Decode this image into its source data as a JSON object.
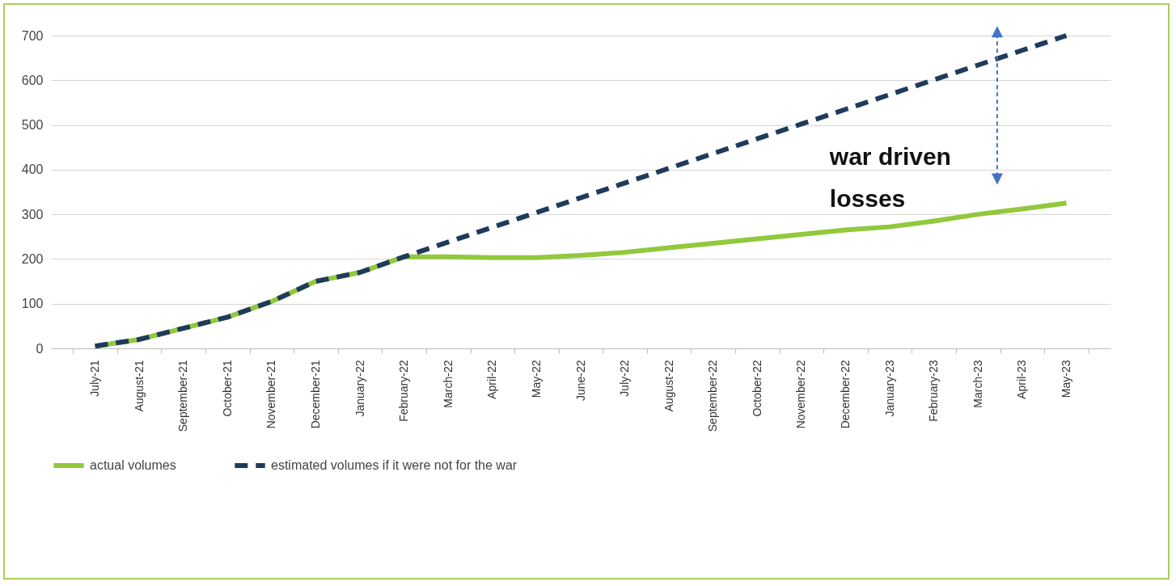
{
  "chart_data": {
    "type": "line",
    "categories": [
      "July-21",
      "August-21",
      "September-21",
      "October-21",
      "November-21",
      "December-21",
      "January-22",
      "February-22",
      "March-22",
      "April-22",
      "May-22",
      "June-22",
      "July-22",
      "August-22",
      "September-22",
      "October-22",
      "November-22",
      "December-22",
      "January-23",
      "February-23",
      "March-23",
      "April-23",
      "May-23"
    ],
    "series": [
      {
        "name": "actual volumes",
        "color": "#92c83e",
        "line_style": "solid",
        "values": [
          5,
          20,
          45,
          70,
          105,
          150,
          170,
          205,
          205,
          203,
          203,
          208,
          215,
          225,
          235,
          245,
          255,
          265,
          272,
          285,
          300,
          312,
          325
        ]
      },
      {
        "name": "estimated volumes if it were not for the war",
        "color": "#1f3b5c",
        "line_style": "dashed",
        "values": [
          5,
          20,
          45,
          70,
          105,
          150,
          170,
          205,
          238,
          271,
          304,
          337,
          370,
          403,
          436,
          469,
          502,
          535,
          568,
          601,
          634,
          667,
          700
        ]
      }
    ],
    "ylim": [
      0,
      700
    ],
    "yticks": [
      0,
      100,
      200,
      300,
      400,
      500,
      600,
      700
    ],
    "grid": "y",
    "legend": "bottom",
    "annotations": [
      "war driven losses"
    ]
  }
}
